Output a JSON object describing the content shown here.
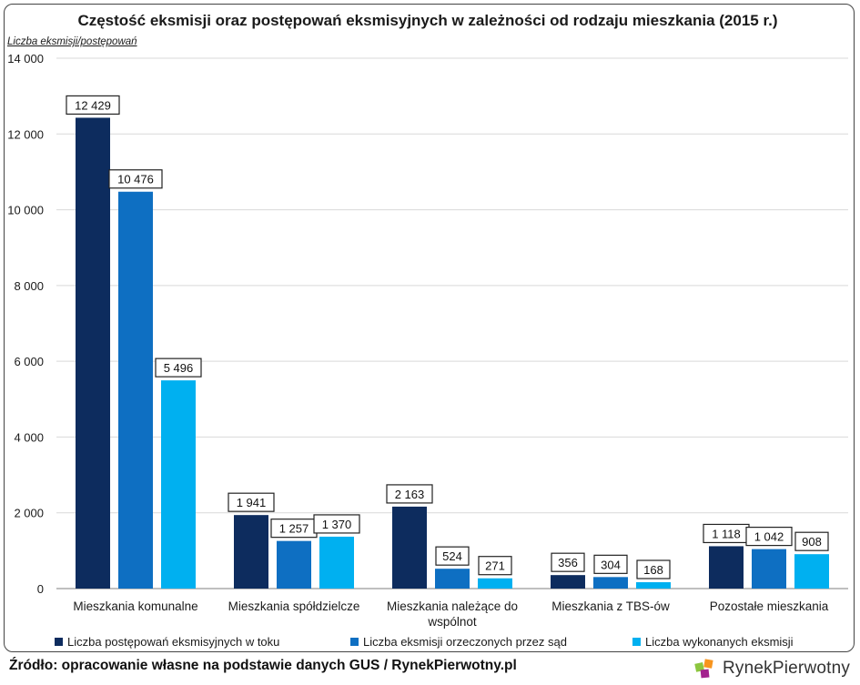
{
  "title": "Częstość eksmisji oraz postępowań eksmisyjnych w zależności od rodzaju mieszkania (2015 r.)",
  "y_axis_unit_label": "Liczba eksmisji/postępowań",
  "source_note": "Źródło: opracowanie własne na podstawie danych GUS / RynekPierwotny.pl",
  "logo": {
    "text": "RynekPierwotny",
    "icon": "logo-squares-icon"
  },
  "colors": {
    "series1": "#0d2c5e",
    "series2": "#0e6fc2",
    "series3": "#00b0f0",
    "grid": "#d9d9d9",
    "axis": "#7f7f7f"
  },
  "chart_data": {
    "type": "bar",
    "title": "Częstość eksmisji oraz postępowań eksmisyjnych w zależności od rodzaju mieszkania (2015 r.)",
    "ylabel": "Liczba eksmisji/postępowań",
    "xlabel": "",
    "ylim": [
      0,
      14000
    ],
    "yticks": [
      0,
      2000,
      4000,
      6000,
      8000,
      10000,
      12000,
      14000
    ],
    "ytick_labels": [
      "0",
      "2 000",
      "4 000",
      "6 000",
      "8 000",
      "10 000",
      "12 000",
      "14 000"
    ],
    "grid": true,
    "legend_position": "bottom",
    "categories": [
      [
        "Mieszkania komunalne"
      ],
      [
        "Mieszkania spółdzielcze"
      ],
      [
        "Mieszkania należące do",
        "wspólnot"
      ],
      [
        "Mieszkania z TBS-ów"
      ],
      [
        "Pozostałe mieszkania"
      ]
    ],
    "series": [
      {
        "name": "Liczba postępowań eksmisyjnych w toku",
        "values": [
          12429,
          1941,
          2163,
          356,
          1118
        ],
        "labels": [
          "12 429",
          "1 941",
          "2 163",
          "356",
          "1 118"
        ]
      },
      {
        "name": "Liczba eksmisji orzeczonych przez sąd",
        "values": [
          10476,
          1257,
          524,
          304,
          1042
        ],
        "labels": [
          "10 476",
          "1 257",
          "524",
          "304",
          "1 042"
        ]
      },
      {
        "name": "Liczba wykonanych eksmisji",
        "values": [
          5496,
          1370,
          271,
          168,
          908
        ],
        "labels": [
          "5 496",
          "1 370",
          "271",
          "168",
          "908"
        ]
      }
    ]
  }
}
